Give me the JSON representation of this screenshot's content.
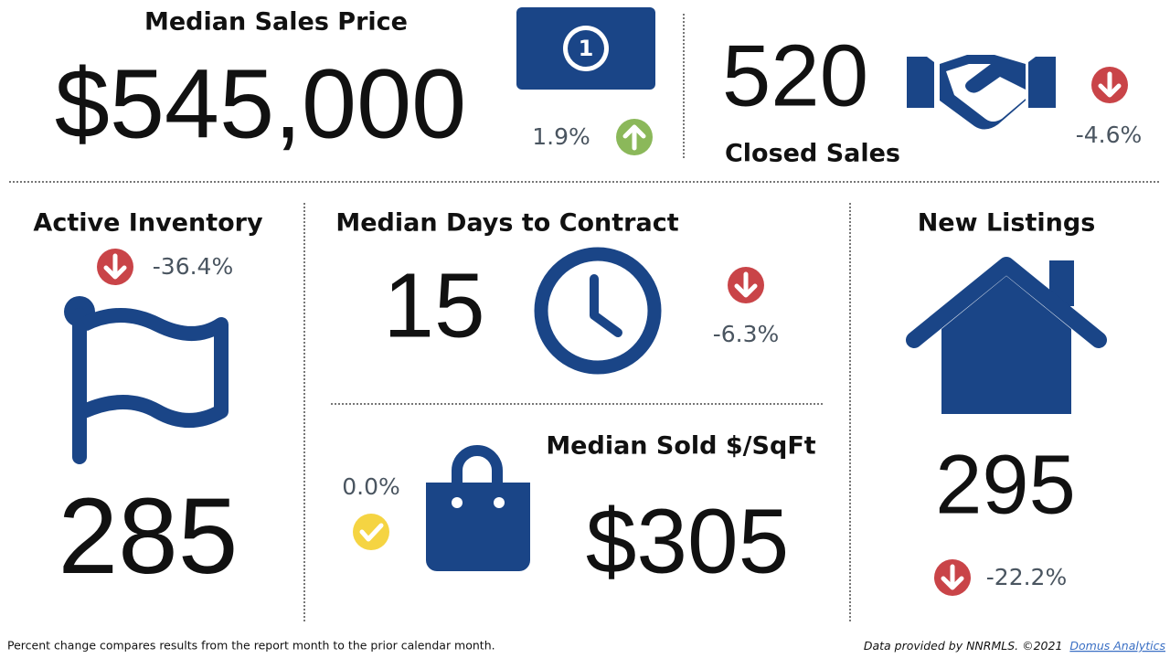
{
  "metrics": [
    {
      "title": "Median Sales Price",
      "value": "$545,000",
      "change": "1.9%"
    },
    {
      "title": "Closed Sales",
      "value": "520",
      "change": "-4.6%"
    },
    {
      "title": "Active Inventory",
      "value": "285",
      "change": "-36.4%"
    },
    {
      "title": "Median Days to Contract",
      "value": "15",
      "change": "-6.3%"
    },
    {
      "title": "Median Sold $/SqFt",
      "value": "$305",
      "change": "0.0%"
    },
    {
      "title": "New Listings",
      "value": "295",
      "change": "-22.2%"
    }
  ],
  "footer": {
    "note": "Percent change compares results from the report month to the prior calendar month.",
    "credit": "Data provided by NNRMLS. ©2021",
    "link": "Domus Analytics"
  }
}
